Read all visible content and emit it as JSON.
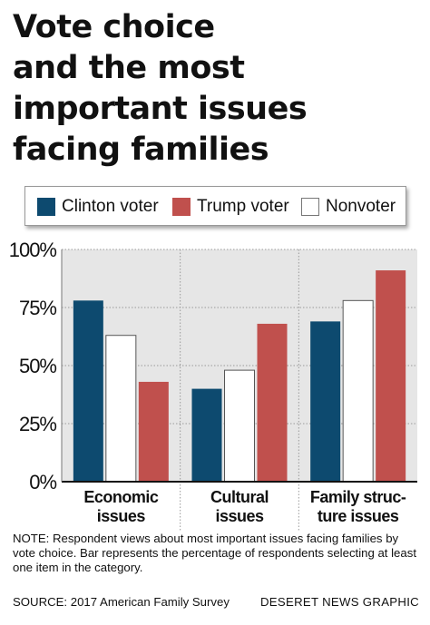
{
  "title_lines": [
    "Vote choice",
    "and the most",
    "important issues",
    "facing families"
  ],
  "legend": [
    {
      "label": "Clinton voter",
      "color": "#0d4a6f"
    },
    {
      "label": "Trump voter",
      "color": "#c0504d"
    },
    {
      "label": "Nonvoter",
      "color": "#ffffff"
    }
  ],
  "chart_data": {
    "type": "bar",
    "title": "Vote choice and the most important issues facing families",
    "categories": [
      [
        "Economic",
        "issues"
      ],
      [
        "Cultural",
        "issues"
      ],
      [
        "Family struc-",
        "ture issues"
      ]
    ],
    "series": [
      {
        "name": "Clinton voter",
        "color": "#0d4a6f",
        "values": [
          78,
          40,
          69
        ]
      },
      {
        "name": "Nonvoter",
        "color": "#ffffff",
        "values": [
          63,
          48,
          78
        ]
      },
      {
        "name": "Trump voter",
        "color": "#c0504d",
        "values": [
          43,
          68,
          91
        ]
      }
    ],
    "ylim": [
      0,
      100
    ],
    "yticks": [
      "0%",
      "25%",
      "50%",
      "75%",
      "100%"
    ],
    "ytick_values": [
      0,
      25,
      50,
      75,
      100
    ],
    "plot_background": "#e6e6e6",
    "grid": true
  },
  "note": "NOTE: Respondent views about most important issues facing families by vote choice. Bar represents the percentage of respondents selecting at least one item in the category.",
  "source": "SOURCE: 2017 American Family Survey",
  "credit": "DESERET NEWS GRAPHIC"
}
